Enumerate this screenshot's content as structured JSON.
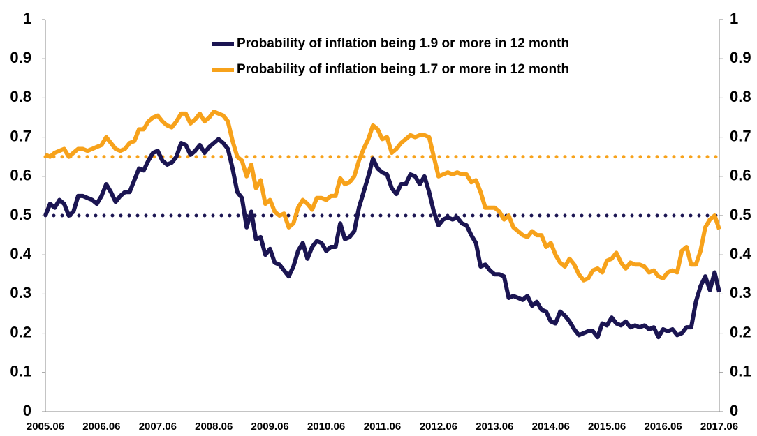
{
  "chart_data": {
    "type": "line",
    "categories": [
      "2005.06",
      null,
      null,
      null,
      null,
      null,
      null,
      null,
      null,
      null,
      null,
      null,
      "2006.06",
      null,
      null,
      null,
      null,
      null,
      null,
      null,
      null,
      null,
      null,
      null,
      "2007.06",
      null,
      null,
      null,
      null,
      null,
      null,
      null,
      null,
      null,
      null,
      null,
      "2008.06",
      null,
      null,
      null,
      null,
      null,
      null,
      null,
      null,
      null,
      null,
      null,
      "2009.06",
      null,
      null,
      null,
      null,
      null,
      null,
      null,
      null,
      null,
      null,
      null,
      "2010.06",
      null,
      null,
      null,
      null,
      null,
      null,
      null,
      null,
      null,
      null,
      null,
      "2011.06",
      null,
      null,
      null,
      null,
      null,
      null,
      null,
      null,
      null,
      null,
      null,
      "2012.06",
      null,
      null,
      null,
      null,
      null,
      null,
      null,
      null,
      null,
      null,
      null,
      "2013.06",
      null,
      null,
      null,
      null,
      null,
      null,
      null,
      null,
      null,
      null,
      null,
      "2014.06",
      null,
      null,
      null,
      null,
      null,
      null,
      null,
      null,
      null,
      null,
      null,
      "2015.06",
      null,
      null,
      null,
      null,
      null,
      null,
      null,
      null,
      null,
      null,
      null,
      "2016.06",
      null,
      null,
      null,
      null,
      null,
      null,
      null,
      null,
      null,
      null,
      null,
      "2017.06"
    ],
    "series": [
      {
        "name": "Probability of inflation being 1.9 or more in 12 month",
        "color": "#1b1552",
        "values": [
          0.5,
          0.53,
          0.52,
          0.54,
          0.53,
          0.5,
          0.51,
          0.55,
          0.55,
          0.545,
          0.54,
          0.53,
          0.55,
          0.58,
          0.56,
          0.535,
          0.55,
          0.56,
          0.56,
          0.59,
          0.62,
          0.615,
          0.64,
          0.66,
          0.665,
          0.64,
          0.63,
          0.635,
          0.65,
          0.685,
          0.68,
          0.655,
          0.665,
          0.68,
          0.66,
          0.675,
          0.685,
          0.695,
          0.685,
          0.67,
          0.62,
          0.56,
          0.545,
          0.47,
          0.51,
          0.44,
          0.445,
          0.4,
          0.415,
          0.38,
          0.375,
          0.36,
          0.345,
          0.37,
          0.41,
          0.43,
          0.39,
          0.42,
          0.435,
          0.43,
          0.41,
          0.42,
          0.42,
          0.48,
          0.44,
          0.445,
          0.46,
          0.52,
          0.56,
          0.6,
          0.645,
          0.62,
          0.61,
          0.605,
          0.57,
          0.555,
          0.58,
          0.58,
          0.605,
          0.6,
          0.58,
          0.6,
          0.56,
          0.51,
          0.475,
          0.49,
          0.495,
          0.49,
          0.495,
          0.48,
          0.475,
          0.45,
          0.43,
          0.37,
          0.375,
          0.36,
          0.35,
          0.35,
          0.345,
          0.29,
          0.295,
          0.29,
          0.285,
          0.295,
          0.27,
          0.28,
          0.26,
          0.255,
          0.23,
          0.225,
          0.255,
          0.245,
          0.23,
          0.21,
          0.195,
          0.2,
          0.205,
          0.205,
          0.19,
          0.225,
          0.22,
          0.24,
          0.225,
          0.22,
          0.23,
          0.215,
          0.22,
          0.215,
          0.22,
          0.21,
          0.215,
          0.19,
          0.21,
          0.205,
          0.21,
          0.195,
          0.2,
          0.215,
          0.215,
          0.28,
          0.32,
          0.345,
          0.31,
          0.355,
          0.305
        ]
      },
      {
        "name": "Probability of inflation being 1.7 or more in 12 month",
        "color": "#f7a21b",
        "values": [
          0.655,
          0.65,
          0.66,
          0.665,
          0.67,
          0.65,
          0.66,
          0.67,
          0.67,
          0.665,
          0.67,
          0.675,
          0.68,
          0.7,
          0.685,
          0.67,
          0.665,
          0.67,
          0.685,
          0.69,
          0.72,
          0.72,
          0.74,
          0.75,
          0.755,
          0.74,
          0.73,
          0.725,
          0.74,
          0.76,
          0.76,
          0.735,
          0.745,
          0.76,
          0.74,
          0.75,
          0.765,
          0.76,
          0.755,
          0.74,
          0.69,
          0.65,
          0.64,
          0.6,
          0.63,
          0.57,
          0.59,
          0.53,
          0.54,
          0.51,
          0.5,
          0.505,
          0.47,
          0.48,
          0.52,
          0.54,
          0.53,
          0.515,
          0.545,
          0.545,
          0.54,
          0.55,
          0.55,
          0.595,
          0.58,
          0.585,
          0.6,
          0.64,
          0.67,
          0.695,
          0.73,
          0.72,
          0.695,
          0.7,
          0.66,
          0.67,
          0.685,
          0.695,
          0.705,
          0.7,
          0.705,
          0.705,
          0.7,
          0.65,
          0.6,
          0.605,
          0.61,
          0.605,
          0.61,
          0.605,
          0.605,
          0.585,
          0.59,
          0.56,
          0.52,
          0.52,
          0.52,
          0.51,
          0.49,
          0.5,
          0.47,
          0.46,
          0.45,
          0.445,
          0.46,
          0.45,
          0.45,
          0.42,
          0.43,
          0.4,
          0.38,
          0.37,
          0.39,
          0.375,
          0.35,
          0.335,
          0.34,
          0.36,
          0.365,
          0.355,
          0.385,
          0.39,
          0.405,
          0.38,
          0.365,
          0.38,
          0.375,
          0.375,
          0.37,
          0.355,
          0.36,
          0.345,
          0.34,
          0.355,
          0.36,
          0.355,
          0.41,
          0.42,
          0.375,
          0.375,
          0.41,
          0.47,
          0.49,
          0.5,
          0.465
        ]
      }
    ],
    "reference_lines": [
      {
        "value": 0.5,
        "color": "#1b1552"
      },
      {
        "value": 0.65,
        "color": "#f7a21b"
      }
    ],
    "ylim": [
      0,
      1
    ],
    "yticks": [
      0,
      0.1,
      0.2,
      0.3,
      0.4,
      0.5,
      0.6,
      0.7,
      0.8,
      0.9,
      1
    ],
    "y2lim": [
      0,
      1
    ],
    "y2ticks": [
      0,
      0.1,
      0.2,
      0.3,
      0.4,
      0.5,
      0.6,
      0.7,
      0.8,
      0.9,
      1
    ],
    "legend": "top"
  }
}
